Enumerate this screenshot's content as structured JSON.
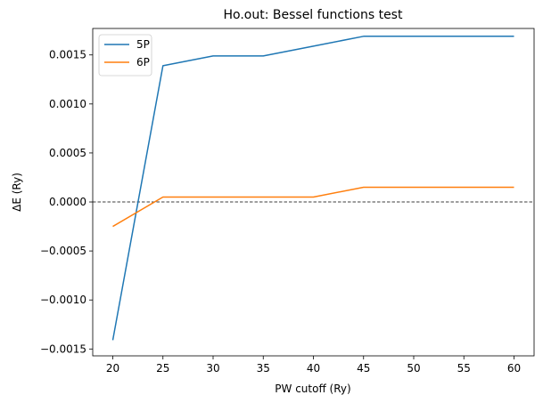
{
  "chart_data": {
    "type": "line",
    "title": "Ho.out: Bessel functions test",
    "xlabel": "PW cutoff (Ry)",
    "ylabel": "ΔE (Ry)",
    "xlim": [
      18,
      62
    ],
    "ylim": [
      -0.00157,
      0.00177
    ],
    "xticks": [
      20,
      25,
      30,
      35,
      40,
      45,
      50,
      55,
      60
    ],
    "xtick_labels": [
      "20",
      "25",
      "30",
      "35",
      "40",
      "45",
      "50",
      "55",
      "60"
    ],
    "yticks": [
      -0.0015,
      -0.001,
      -0.0005,
      0.0,
      0.0005,
      0.001,
      0.0015
    ],
    "ytick_labels": [
      "−0.0015",
      "−0.0010",
      "−0.0005",
      "0.0000",
      "0.0005",
      "0.0010",
      "0.0015"
    ],
    "reference_line": {
      "y": 0.0,
      "style": "dashed",
      "color": "#000000"
    },
    "grid": false,
    "legend": "top-left",
    "x": [
      20,
      25,
      30,
      35,
      40,
      45,
      50,
      55,
      60
    ],
    "series": [
      {
        "name": "5P",
        "color": "#1f77b4",
        "values": [
          -0.00141,
          0.00139,
          0.00149,
          0.00149,
          0.00159,
          0.00169,
          0.00169,
          0.00169,
          0.00169
        ]
      },
      {
        "name": "6P",
        "color": "#ff7f0e",
        "values": [
          -0.00025,
          5e-05,
          5e-05,
          5e-05,
          5e-05,
          0.00015,
          0.00015,
          0.00015,
          0.00015
        ]
      }
    ]
  }
}
